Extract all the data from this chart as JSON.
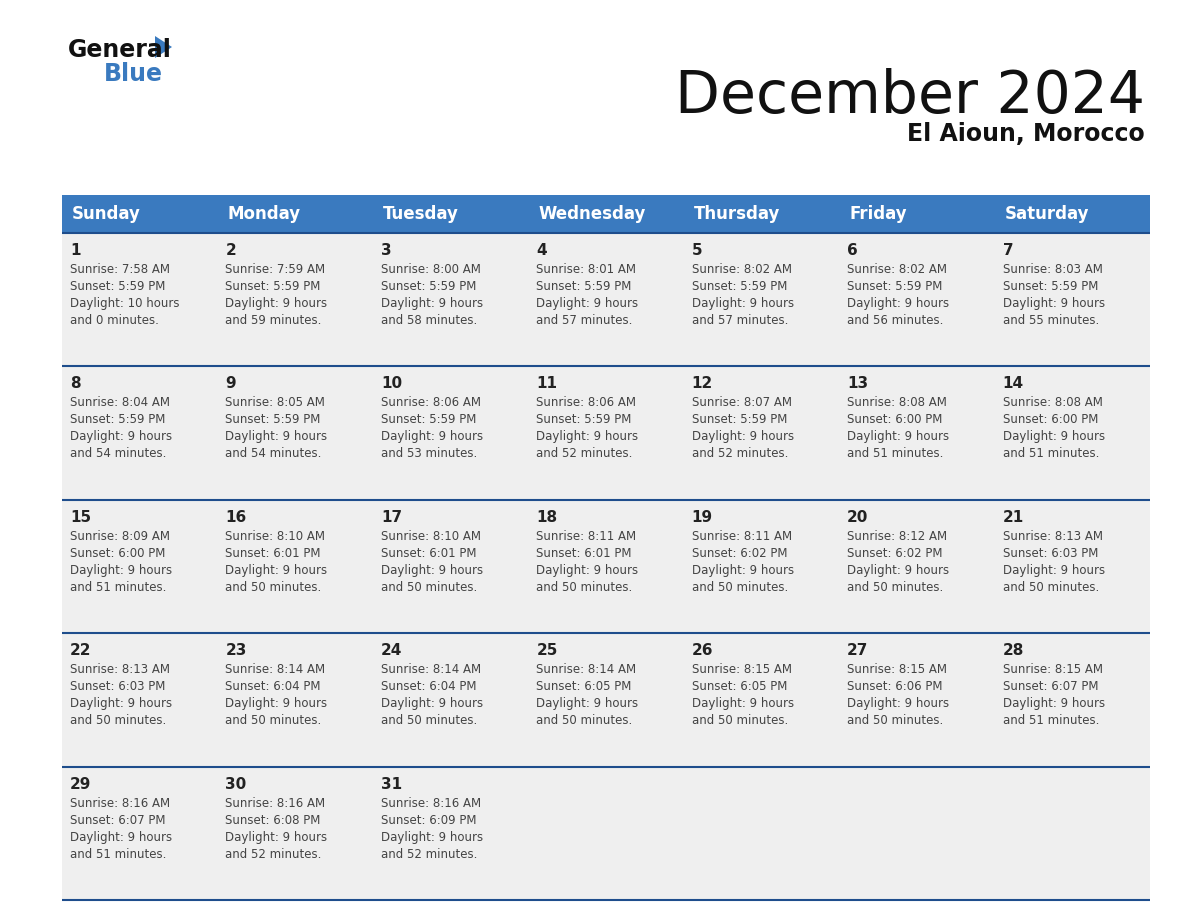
{
  "title": "December 2024",
  "subtitle": "El Aioun, Morocco",
  "days_of_week": [
    "Sunday",
    "Monday",
    "Tuesday",
    "Wednesday",
    "Thursday",
    "Friday",
    "Saturday"
  ],
  "header_bg": "#3a7abf",
  "header_text": "#ffffff",
  "cell_bg_light": "#efefef",
  "border_color": "#1e4d8c",
  "day_number_color": "#222222",
  "text_color": "#444444",
  "weeks": [
    [
      {
        "day": 1,
        "sunrise": "7:58 AM",
        "sunset": "5:59 PM",
        "daylight": "10 hours\nand 0 minutes."
      },
      {
        "day": 2,
        "sunrise": "7:59 AM",
        "sunset": "5:59 PM",
        "daylight": "9 hours\nand 59 minutes."
      },
      {
        "day": 3,
        "sunrise": "8:00 AM",
        "sunset": "5:59 PM",
        "daylight": "9 hours\nand 58 minutes."
      },
      {
        "day": 4,
        "sunrise": "8:01 AM",
        "sunset": "5:59 PM",
        "daylight": "9 hours\nand 57 minutes."
      },
      {
        "day": 5,
        "sunrise": "8:02 AM",
        "sunset": "5:59 PM",
        "daylight": "9 hours\nand 57 minutes."
      },
      {
        "day": 6,
        "sunrise": "8:02 AM",
        "sunset": "5:59 PM",
        "daylight": "9 hours\nand 56 minutes."
      },
      {
        "day": 7,
        "sunrise": "8:03 AM",
        "sunset": "5:59 PM",
        "daylight": "9 hours\nand 55 minutes."
      }
    ],
    [
      {
        "day": 8,
        "sunrise": "8:04 AM",
        "sunset": "5:59 PM",
        "daylight": "9 hours\nand 54 minutes."
      },
      {
        "day": 9,
        "sunrise": "8:05 AM",
        "sunset": "5:59 PM",
        "daylight": "9 hours\nand 54 minutes."
      },
      {
        "day": 10,
        "sunrise": "8:06 AM",
        "sunset": "5:59 PM",
        "daylight": "9 hours\nand 53 minutes."
      },
      {
        "day": 11,
        "sunrise": "8:06 AM",
        "sunset": "5:59 PM",
        "daylight": "9 hours\nand 52 minutes."
      },
      {
        "day": 12,
        "sunrise": "8:07 AM",
        "sunset": "5:59 PM",
        "daylight": "9 hours\nand 52 minutes."
      },
      {
        "day": 13,
        "sunrise": "8:08 AM",
        "sunset": "6:00 PM",
        "daylight": "9 hours\nand 51 minutes."
      },
      {
        "day": 14,
        "sunrise": "8:08 AM",
        "sunset": "6:00 PM",
        "daylight": "9 hours\nand 51 minutes."
      }
    ],
    [
      {
        "day": 15,
        "sunrise": "8:09 AM",
        "sunset": "6:00 PM",
        "daylight": "9 hours\nand 51 minutes."
      },
      {
        "day": 16,
        "sunrise": "8:10 AM",
        "sunset": "6:01 PM",
        "daylight": "9 hours\nand 50 minutes."
      },
      {
        "day": 17,
        "sunrise": "8:10 AM",
        "sunset": "6:01 PM",
        "daylight": "9 hours\nand 50 minutes."
      },
      {
        "day": 18,
        "sunrise": "8:11 AM",
        "sunset": "6:01 PM",
        "daylight": "9 hours\nand 50 minutes."
      },
      {
        "day": 19,
        "sunrise": "8:11 AM",
        "sunset": "6:02 PM",
        "daylight": "9 hours\nand 50 minutes."
      },
      {
        "day": 20,
        "sunrise": "8:12 AM",
        "sunset": "6:02 PM",
        "daylight": "9 hours\nand 50 minutes."
      },
      {
        "day": 21,
        "sunrise": "8:13 AM",
        "sunset": "6:03 PM",
        "daylight": "9 hours\nand 50 minutes."
      }
    ],
    [
      {
        "day": 22,
        "sunrise": "8:13 AM",
        "sunset": "6:03 PM",
        "daylight": "9 hours\nand 50 minutes."
      },
      {
        "day": 23,
        "sunrise": "8:14 AM",
        "sunset": "6:04 PM",
        "daylight": "9 hours\nand 50 minutes."
      },
      {
        "day": 24,
        "sunrise": "8:14 AM",
        "sunset": "6:04 PM",
        "daylight": "9 hours\nand 50 minutes."
      },
      {
        "day": 25,
        "sunrise": "8:14 AM",
        "sunset": "6:05 PM",
        "daylight": "9 hours\nand 50 minutes."
      },
      {
        "day": 26,
        "sunrise": "8:15 AM",
        "sunset": "6:05 PM",
        "daylight": "9 hours\nand 50 minutes."
      },
      {
        "day": 27,
        "sunrise": "8:15 AM",
        "sunset": "6:06 PM",
        "daylight": "9 hours\nand 50 minutes."
      },
      {
        "day": 28,
        "sunrise": "8:15 AM",
        "sunset": "6:07 PM",
        "daylight": "9 hours\nand 51 minutes."
      }
    ],
    [
      {
        "day": 29,
        "sunrise": "8:16 AM",
        "sunset": "6:07 PM",
        "daylight": "9 hours\nand 51 minutes."
      },
      {
        "day": 30,
        "sunrise": "8:16 AM",
        "sunset": "6:08 PM",
        "daylight": "9 hours\nand 52 minutes."
      },
      {
        "day": 31,
        "sunrise": "8:16 AM",
        "sunset": "6:09 PM",
        "daylight": "9 hours\nand 52 minutes."
      },
      null,
      null,
      null,
      null
    ]
  ]
}
